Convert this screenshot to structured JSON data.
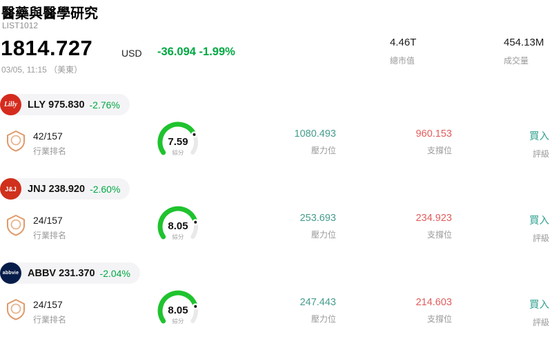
{
  "header": {
    "title": "醫藥與醫學研究",
    "list_id": "LIST1012",
    "price": "1814.727",
    "currency": "USD",
    "change": "-36.094 -1.99%",
    "datetime": "03/05, 11:15 （美東）",
    "market_cap_value": "4.46T",
    "market_cap_label": "總市值",
    "volume_value": "454.13M",
    "volume_label": "成交量"
  },
  "labels": {
    "industry_rank": "行業排名",
    "score": "綜分",
    "resistance": "壓力位",
    "support": "支撐位",
    "rating": "評級"
  },
  "colors": {
    "down_green": "#00a843",
    "resistance_teal": "#469c8c",
    "support_red": "#e25c5c",
    "rating_teal": "#2fa18e",
    "gauge_green": "#1fc32e",
    "gauge_track": "#e9e9e9",
    "shield_orange": "#e09a6a"
  },
  "stocks": [
    {
      "symbol": "LLY",
      "price": "975.830",
      "change": "-2.76%",
      "logo_text": "Lilly",
      "logo_color": "#d52b1e",
      "rank": "42/157",
      "score": "7.59",
      "score_value": 7.59,
      "resistance": "1080.493",
      "support": "960.153",
      "rating": "買入"
    },
    {
      "symbol": "JNJ",
      "price": "238.920",
      "change": "-2.60%",
      "logo_text": "J&J",
      "logo_color": "#d0301c",
      "rank": "24/157",
      "score": "8.05",
      "score_value": 8.05,
      "resistance": "253.693",
      "support": "234.923",
      "rating": "買入"
    },
    {
      "symbol": "ABBV",
      "price": "231.370",
      "change": "-2.04%",
      "logo_text": "abbvie",
      "logo_color": "#071d49",
      "rank": "24/157",
      "score": "8.05",
      "score_value": 8.05,
      "resistance": "247.443",
      "support": "214.603",
      "rating": "買入"
    }
  ]
}
